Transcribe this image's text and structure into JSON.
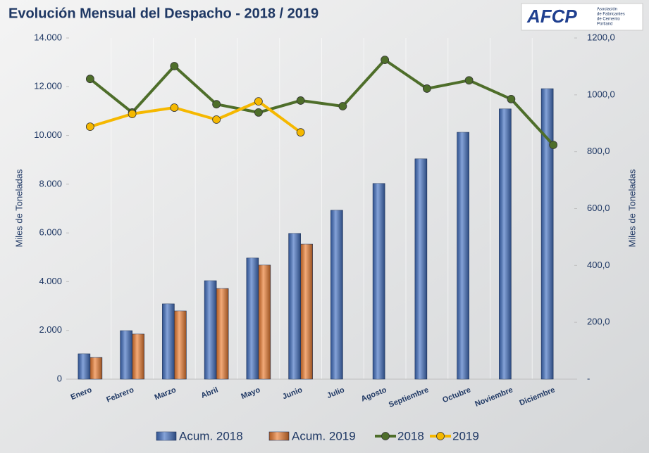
{
  "chart_data": {
    "type": "bar",
    "title": "Evolución Mensual del Despacho - 2018 / 2019",
    "logo": {
      "text": "AFCP",
      "lines": [
        "Asociación",
        "de Fabricantes",
        "de Cemento",
        "Portland"
      ]
    },
    "ylabel": "Miles de Toneladas",
    "y2label": "Miles de Toneladas",
    "categories": [
      "Enero",
      "Febrero",
      "Marzo",
      "Abril",
      "Mayo",
      "Junio",
      "Julio",
      "Agosto",
      "Septiembre",
      "Octubre",
      "Noviembre",
      "Diciembre"
    ],
    "ylim": [
      0,
      14000
    ],
    "yticks": [
      0,
      {
        "value": 2000,
        "label": "2.000"
      },
      {
        "value": 4000,
        "label": "4.000"
      },
      {
        "value": 6000,
        "label": "6.000"
      },
      {
        "value": 8000,
        "label": "8.000"
      },
      {
        "value": 10000,
        "label": "10.000"
      },
      {
        "value": 12000,
        "label": "12.000"
      },
      {
        "value": 14000,
        "label": "14.000"
      }
    ],
    "y2lim": [
      0,
      1200
    ],
    "y2ticks": [
      {
        "value": 0,
        "label": "-"
      },
      {
        "value": 200,
        "label": "200,0"
      },
      {
        "value": 400,
        "label": "400,0"
      },
      {
        "value": 600,
        "label": "600,0"
      },
      {
        "value": 800,
        "label": "800,0"
      },
      {
        "value": 1000,
        "label": "1000,0"
      },
      {
        "value": 1200,
        "label": "1200,0"
      }
    ],
    "series": [
      {
        "name": "Acum. 2018",
        "type": "bar",
        "color": "#4472c4",
        "values": [
          1040,
          1990,
          3090,
          4040,
          4970,
          5980,
          6930,
          8030,
          9040,
          10130,
          11090,
          11920
        ]
      },
      {
        "name": "Acum. 2019",
        "type": "bar",
        "color": "#ed7d31",
        "values": [
          890,
          1850,
          2800,
          3720,
          4680,
          5540,
          null,
          null,
          null,
          null,
          null,
          null
        ]
      },
      {
        "name": "2018",
        "type": "line",
        "axis": "y2",
        "color": "#4e6e2a",
        "values": [
          1056,
          938,
          1101,
          967,
          938,
          980,
          960,
          1123,
          1022,
          1051,
          985,
          824
        ]
      },
      {
        "name": "2019",
        "type": "line",
        "axis": "y2",
        "color": "#f5b800",
        "values": [
          888,
          933,
          955,
          913,
          977,
          868,
          null,
          null,
          null,
          null,
          null,
          null
        ]
      }
    ]
  }
}
